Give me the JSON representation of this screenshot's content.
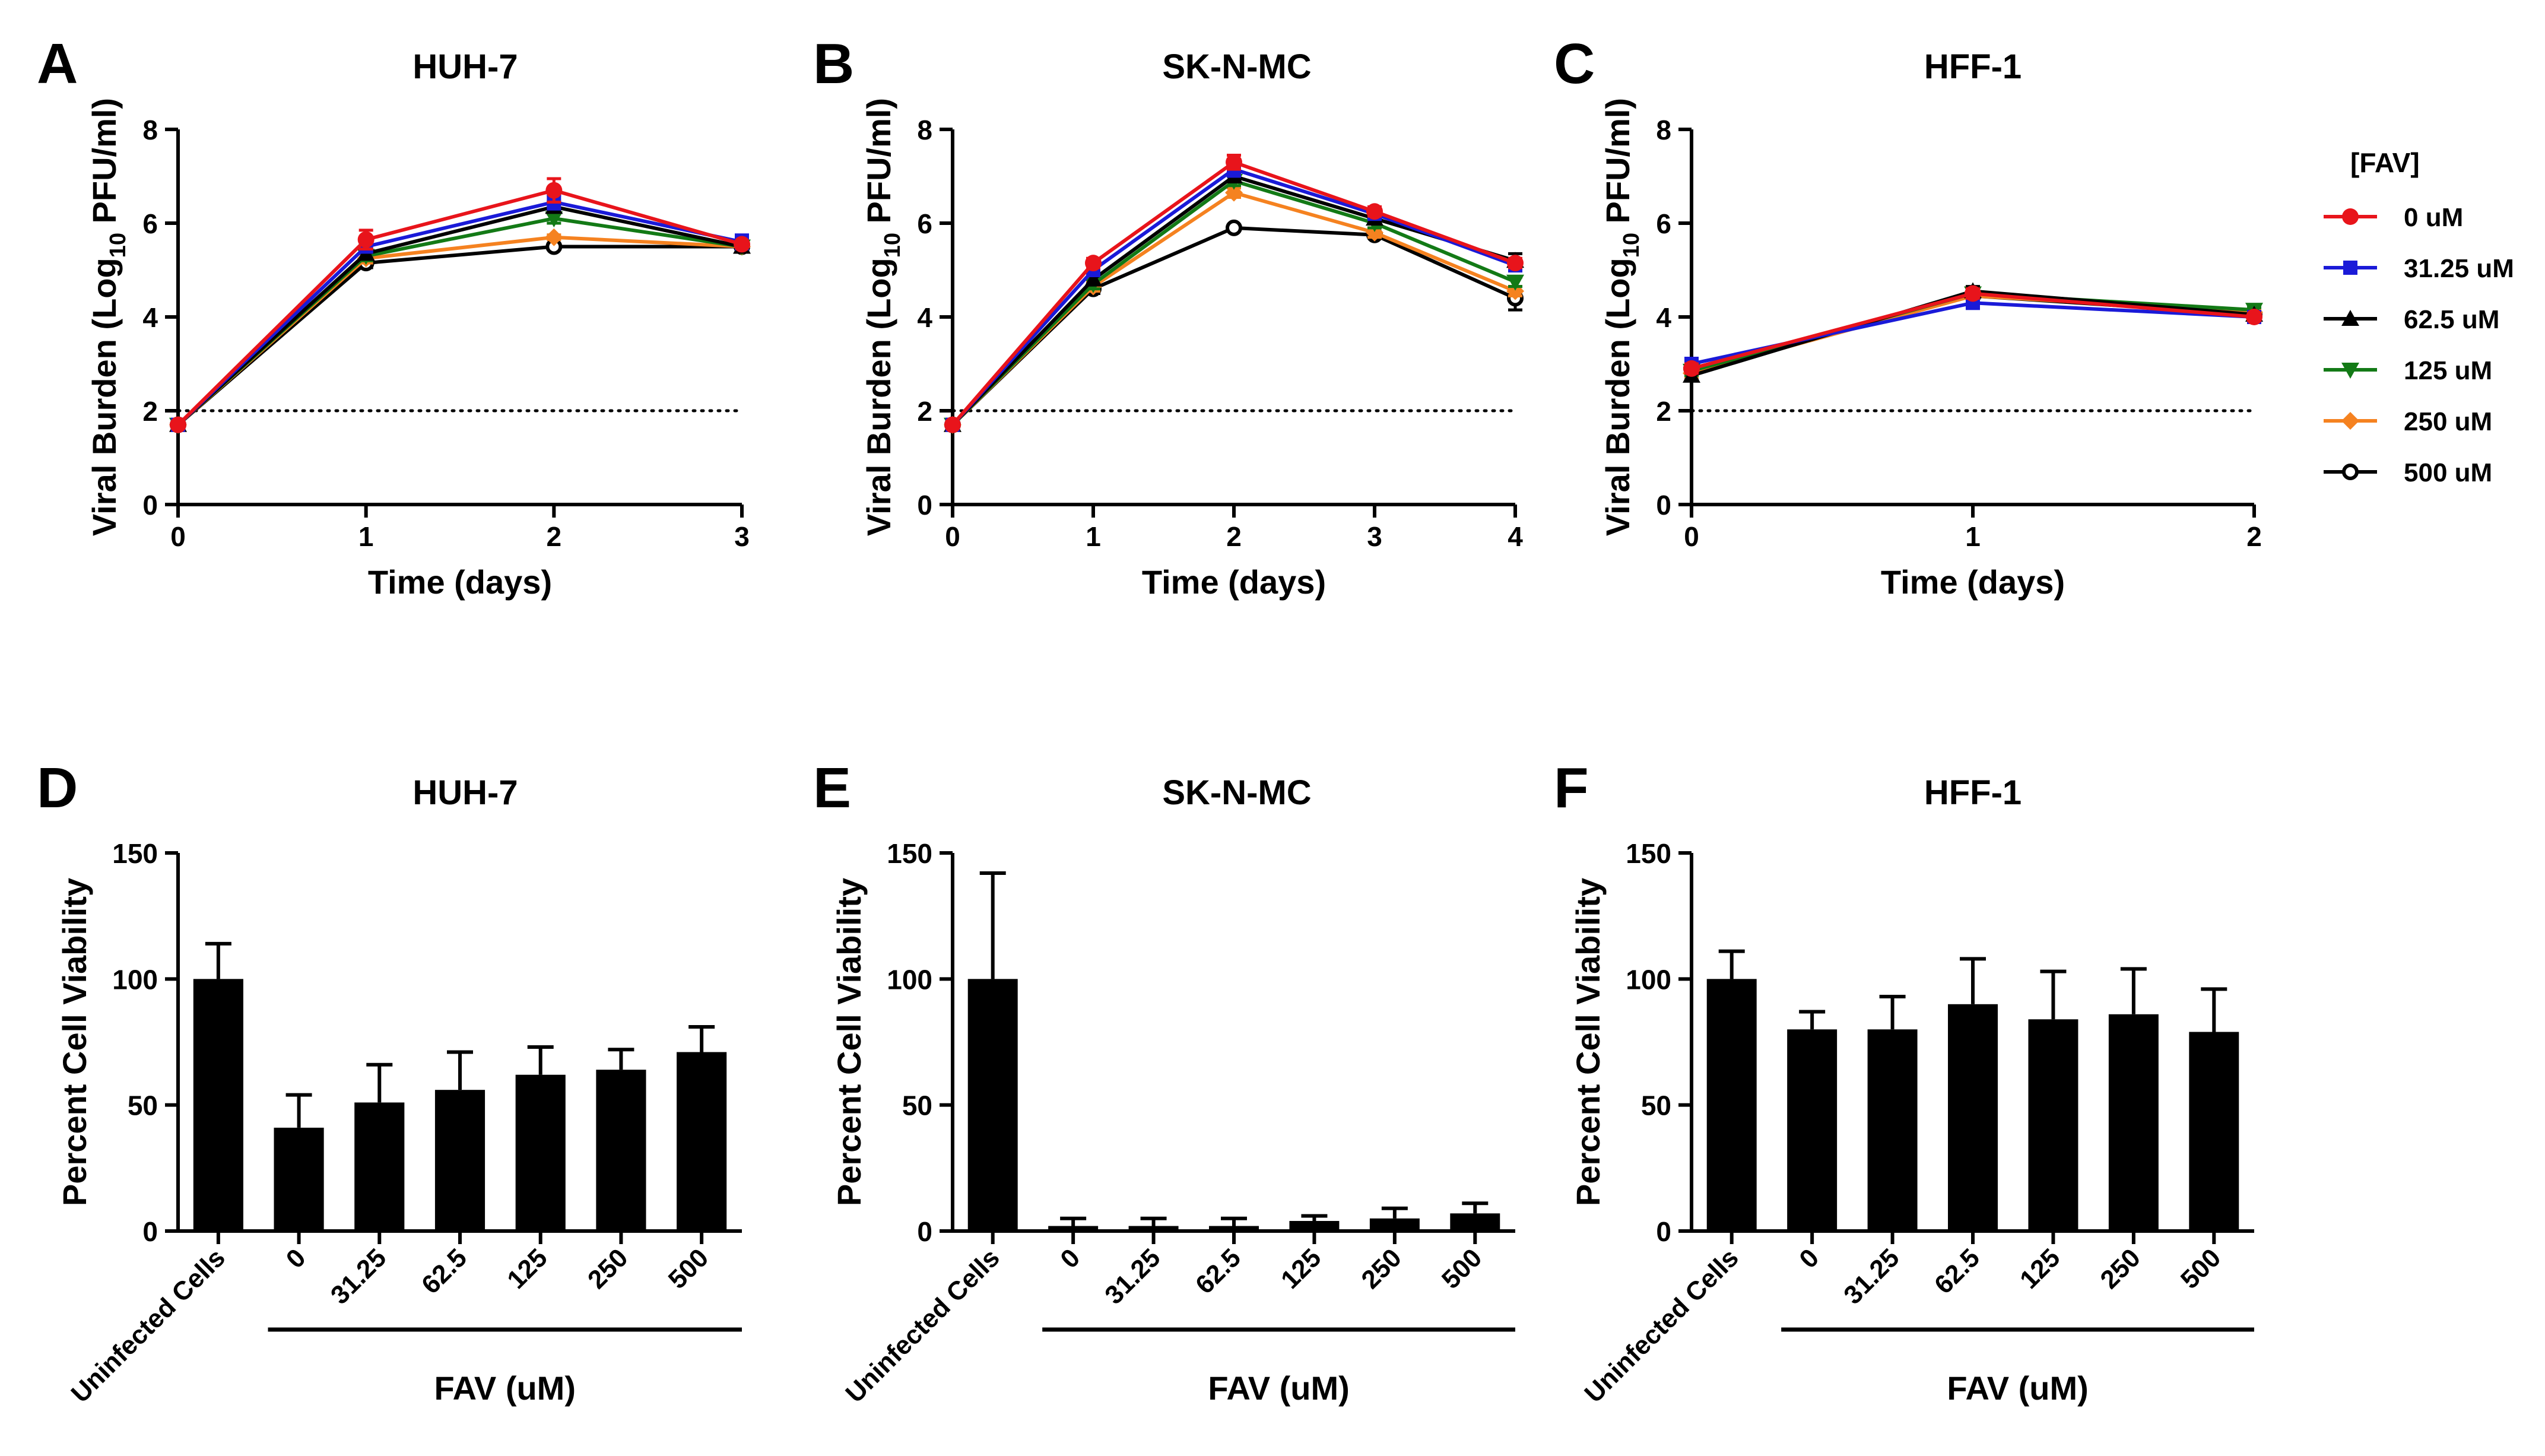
{
  "chart_data": [
    {
      "panel": "A",
      "type": "line",
      "title": "HUH-7",
      "xlabel": "Time (days)",
      "ylabel_main": "Viral Burden (Log",
      "ylabel_sub": "10",
      "ylabel_end": " PFU/ml)",
      "xlim": [
        0,
        3
      ],
      "ylim": [
        0,
        8
      ],
      "xticks": [
        "0",
        "1",
        "2",
        "3"
      ],
      "yticks": [
        "0",
        "2",
        "4",
        "6",
        "8"
      ],
      "reference_line": 2,
      "x": [
        0,
        1,
        2,
        3
      ],
      "series": [
        {
          "name": "0 uM",
          "values": [
            1.7,
            5.65,
            6.7,
            5.55
          ],
          "errors": [
            0,
            0.2,
            0.25,
            0.05
          ]
        },
        {
          "name": "31.25 uM",
          "values": [
            1.7,
            5.5,
            6.45,
            5.6
          ],
          "errors": [
            0,
            0.1,
            0.15,
            0.15
          ]
        },
        {
          "name": "62.5 uM",
          "values": [
            1.7,
            5.35,
            6.35,
            5.5
          ],
          "errors": [
            0,
            0.1,
            0.1,
            0.1
          ]
        },
        {
          "name": "125 uM",
          "values": [
            1.7,
            5.3,
            6.1,
            5.5
          ],
          "errors": [
            0,
            0.1,
            0.1,
            0.05
          ]
        },
        {
          "name": "250 uM",
          "values": [
            1.7,
            5.25,
            5.7,
            5.5
          ],
          "errors": [
            0,
            0.1,
            0.05,
            0.05
          ]
        },
        {
          "name": "500 uM",
          "values": [
            1.7,
            5.15,
            5.5,
            5.5
          ],
          "errors": [
            0,
            0.1,
            0.05,
            0.05
          ]
        }
      ]
    },
    {
      "panel": "B",
      "type": "line",
      "title": "SK-N-MC",
      "xlabel": "Time (days)",
      "ylabel_main": "Viral Burden (Log",
      "ylabel_sub": "10",
      "ylabel_end": " PFU/ml)",
      "xlim": [
        0,
        4
      ],
      "ylim": [
        0,
        8
      ],
      "xticks": [
        "0",
        "1",
        "2",
        "3",
        "4"
      ],
      "yticks": [
        "0",
        "2",
        "4",
        "6",
        "8"
      ],
      "reference_line": 2,
      "x": [
        0,
        1,
        2,
        3,
        4
      ],
      "series": [
        {
          "name": "0 uM",
          "values": [
            1.7,
            5.15,
            7.3,
            6.25,
            5.15
          ],
          "errors": [
            0,
            0.1,
            0.15,
            0.1,
            0.1
          ]
        },
        {
          "name": "31.25 uM",
          "values": [
            1.7,
            5.0,
            7.15,
            6.2,
            5.1
          ],
          "errors": [
            0,
            0.1,
            0.15,
            0.1,
            0.1
          ]
        },
        {
          "name": "62.5 uM",
          "values": [
            1.7,
            4.8,
            7.0,
            6.1,
            5.2
          ],
          "errors": [
            0,
            0.1,
            0.1,
            0.1,
            0.15
          ]
        },
        {
          "name": "125 uM",
          "values": [
            1.7,
            4.7,
            6.9,
            6.0,
            4.75
          ],
          "errors": [
            0,
            0.1,
            0.1,
            0.1,
            0.1
          ]
        },
        {
          "name": "250 uM",
          "values": [
            1.7,
            4.65,
            6.65,
            5.8,
            4.55
          ],
          "errors": [
            0,
            0.1,
            0.1,
            0.1,
            0.1
          ]
        },
        {
          "name": "500 uM",
          "values": [
            1.7,
            4.6,
            5.9,
            5.75,
            4.4
          ],
          "errors": [
            0,
            0.1,
            0.05,
            0.05,
            0.25
          ]
        }
      ]
    },
    {
      "panel": "C",
      "type": "line",
      "title": "HFF-1",
      "xlabel": "Time (days)",
      "ylabel_main": "Viral Burden (Log",
      "ylabel_sub": "10",
      "ylabel_end": " PFU/ml)",
      "xlim": [
        0,
        2
      ],
      "ylim": [
        0,
        8
      ],
      "xticks": [
        "0",
        "1",
        "2"
      ],
      "yticks": [
        "0",
        "2",
        "4",
        "6",
        "8"
      ],
      "reference_line": 2,
      "x": [
        0,
        1,
        2
      ],
      "series": [
        {
          "name": "0 uM",
          "values": [
            2.9,
            4.5,
            4.0
          ],
          "errors": [
            0.1,
            0.1,
            0.05
          ]
        },
        {
          "name": "31.25 uM",
          "values": [
            3.0,
            4.3,
            4.0
          ],
          "errors": [
            0.1,
            0.1,
            0.05
          ]
        },
        {
          "name": "62.5 uM",
          "values": [
            2.75,
            4.55,
            4.05
          ],
          "errors": [
            0.1,
            0.1,
            0.05
          ]
        },
        {
          "name": "125 uM",
          "values": [
            2.85,
            4.5,
            4.15
          ],
          "errors": [
            0.1,
            0.1,
            0.05
          ]
        },
        {
          "name": "250 uM",
          "values": [
            2.8,
            4.45,
            4.1
          ],
          "errors": [
            0.1,
            0.1,
            0.05
          ]
        },
        {
          "name": "500 uM",
          "values": [
            2.9,
            4.45,
            4.05
          ],
          "errors": [
            0.1,
            0.1,
            0.05
          ]
        }
      ]
    },
    {
      "panel": "D",
      "type": "bar",
      "title": "HUH-7",
      "ylabel": "Percent Cell Viability",
      "ylim": [
        0,
        150
      ],
      "yticks": [
        "0",
        "50",
        "100",
        "150"
      ],
      "categories": [
        "Uninfected Cells",
        "0",
        "31.25",
        "62.5",
        "125",
        "250",
        "500"
      ],
      "values": [
        100,
        41,
        51,
        56,
        62,
        64,
        71
      ],
      "errors": [
        14,
        13,
        15,
        15,
        11,
        8,
        10
      ],
      "group_label": "FAV (uM)"
    },
    {
      "panel": "E",
      "type": "bar",
      "title": "SK-N-MC",
      "ylabel": "Percent Cell Viability",
      "ylim": [
        0,
        150
      ],
      "yticks": [
        "0",
        "50",
        "100",
        "150"
      ],
      "categories": [
        "Uninfected Cells",
        "0",
        "31.25",
        "62.5",
        "125",
        "250",
        "500"
      ],
      "values": [
        100,
        2,
        2,
        2,
        4,
        5,
        7
      ],
      "errors": [
        42,
        3,
        3,
        3,
        2,
        4,
        4
      ],
      "group_label": "FAV (uM)"
    },
    {
      "panel": "F",
      "type": "bar",
      "title": "HFF-1",
      "ylabel": "Percent Cell Viability",
      "ylim": [
        0,
        150
      ],
      "yticks": [
        "0",
        "50",
        "100",
        "150"
      ],
      "categories": [
        "Uninfected Cells",
        "0",
        "31.25",
        "62.5",
        "125",
        "250",
        "500"
      ],
      "values": [
        100,
        80,
        80,
        90,
        84,
        86,
        79
      ],
      "errors": [
        11,
        7,
        13,
        18,
        19,
        18,
        17
      ],
      "group_label": "FAV (uM)"
    }
  ],
  "legend": {
    "title": "[FAV]",
    "entries": [
      "0 uM",
      "31.25 uM",
      "62.5 uM",
      "125 uM",
      "250 uM",
      "500 uM"
    ]
  },
  "series_styles": [
    {
      "color": "#e8141b",
      "marker": "circle"
    },
    {
      "color": "#1a1ad8",
      "marker": "square"
    },
    {
      "color": "#000000",
      "marker": "triangle-up"
    },
    {
      "color": "#137a16",
      "marker": "triangle-down"
    },
    {
      "color": "#f58220",
      "marker": "diamond"
    },
    {
      "color": "#000000",
      "marker": "open-circle"
    }
  ],
  "draw_order": [
    5,
    4,
    3,
    2,
    1,
    0
  ]
}
